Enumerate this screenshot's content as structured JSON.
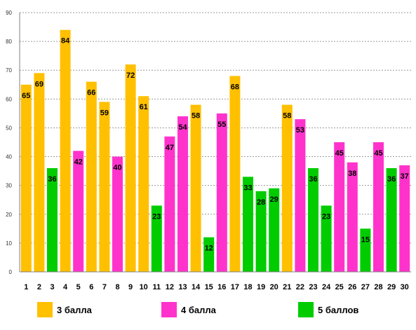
{
  "chart_data": {
    "type": "bar",
    "categories": [
      "1",
      "2",
      "3",
      "4",
      "5",
      "6",
      "7",
      "8",
      "9",
      "10",
      "11",
      "12",
      "13",
      "14",
      "15",
      "16",
      "17",
      "18",
      "19",
      "20",
      "21",
      "22",
      "23",
      "24",
      "25",
      "26",
      "27",
      "28",
      "29",
      "30"
    ],
    "values": [
      65,
      69,
      36,
      84,
      42,
      66,
      59,
      40,
      72,
      61,
      23,
      47,
      54,
      58,
      12,
      55,
      68,
      33,
      28,
      29,
      58,
      53,
      36,
      23,
      45,
      38,
      15,
      45,
      36,
      37
    ],
    "groups": [
      "3",
      "3",
      "5",
      "3",
      "4",
      "3",
      "3",
      "4",
      "3",
      "3",
      "5",
      "4",
      "4",
      "3",
      "5",
      "4",
      "3",
      "5",
      "5",
      "5",
      "3",
      "4",
      "5",
      "5",
      "4",
      "4",
      "5",
      "4",
      "5",
      "4"
    ],
    "ylim": [
      0,
      90
    ],
    "yticks": [
      "0",
      "10",
      "20",
      "30",
      "40",
      "50",
      "60",
      "70",
      "80",
      "90"
    ],
    "grid": "horizontal dashed",
    "legend_placement": "bottom",
    "legend": [
      {
        "key": "3",
        "label": "3 балла",
        "color": "#FFC000"
      },
      {
        "key": "4",
        "label": "4 балла",
        "color": "#FF33CC"
      },
      {
        "key": "5",
        "label": "5 баллов",
        "color": "#00CC00"
      }
    ]
  }
}
